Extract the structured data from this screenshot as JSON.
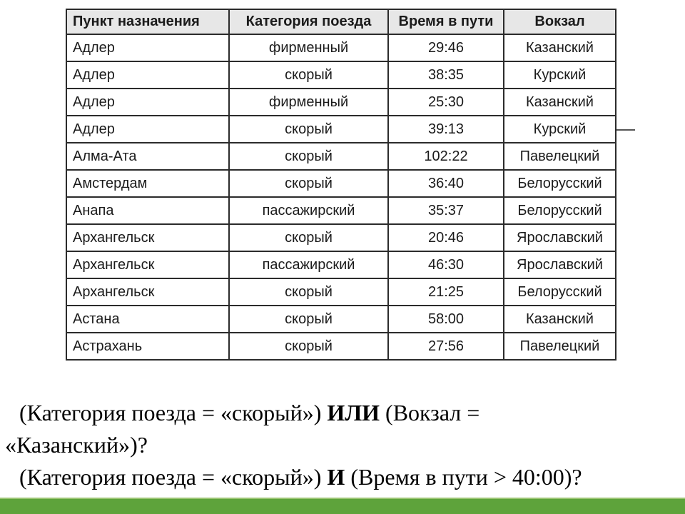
{
  "table": {
    "headers": [
      "Пункт назначения",
      "Категория поезда",
      "Время в пути",
      "Вокзал"
    ],
    "rows": [
      [
        "Адлер",
        "фирменный",
        "29:46",
        "Казанский"
      ],
      [
        "Адлер",
        "скорый",
        "38:35",
        "Курский"
      ],
      [
        "Адлер",
        "фирменный",
        "25:30",
        "Казанский"
      ],
      [
        "Адлер",
        "скорый",
        "39:13",
        "Курский"
      ],
      [
        "Алма-Ата",
        "скорый",
        "102:22",
        "Павелецкий"
      ],
      [
        "Амстердам",
        "скорый",
        "36:40",
        "Белорусский"
      ],
      [
        "Анапа",
        "пассажирский",
        "35:37",
        "Белорусский"
      ],
      [
        "Архангельск",
        "скорый",
        "20:46",
        "Ярославский"
      ],
      [
        "Архангельск",
        "пассажирский",
        "46:30",
        "Ярославский"
      ],
      [
        "Архангельск",
        "скорый",
        "21:25",
        "Белорусский"
      ],
      [
        "Астана",
        "скорый",
        "58:00",
        "Казанский"
      ],
      [
        "Астрахань",
        "скорый",
        "27:56",
        "Павелецкий"
      ]
    ]
  },
  "questions": {
    "q1": {
      "part1": "(Категория поезда = «скорый») ",
      "operator": "ИЛИ",
      "part2": " (Вокзал =",
      "continuation": "«Казанский»)?"
    },
    "q2": {
      "part1": "(Категория поезда = «скорый») ",
      "operator": "И",
      "part2": " (Время в пути > 40:00)?"
    }
  },
  "colors": {
    "accent_bar_green": "#5ea33b",
    "header_background": "#e7e7e7",
    "table_border": "#2b2b2b",
    "text": "#1b1b1b"
  }
}
